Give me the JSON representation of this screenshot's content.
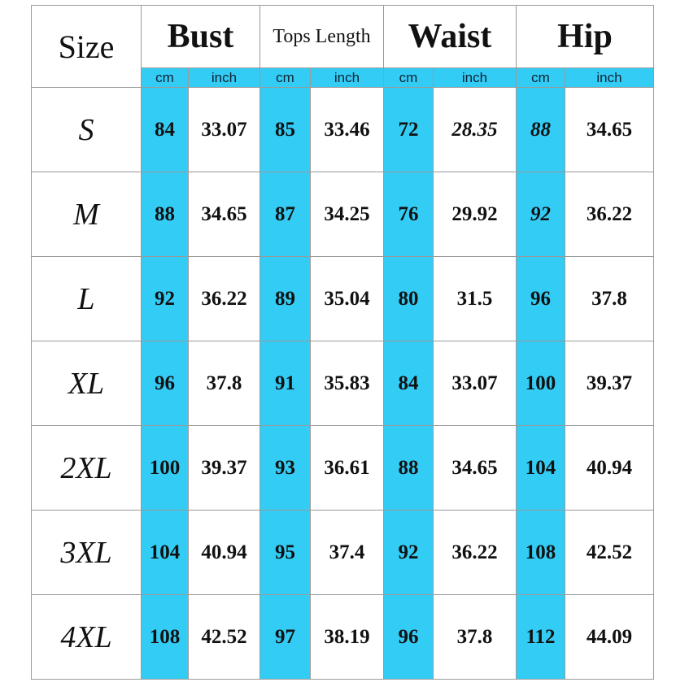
{
  "header": {
    "size": "Size",
    "groups": [
      "Bust",
      "Tops Length",
      "Waist",
      "Hip"
    ],
    "units": [
      "cm",
      "inch",
      "cm",
      "inch",
      "cm",
      "inch",
      "cm",
      "inch"
    ]
  },
  "rows": [
    {
      "size": "S",
      "cells": [
        "84",
        "33.07",
        "85",
        "33.46",
        "72",
        "28.35",
        "88",
        "34.65"
      ]
    },
    {
      "size": "M",
      "cells": [
        "88",
        "34.65",
        "87",
        "34.25",
        "76",
        "29.92",
        "92",
        "36.22"
      ]
    },
    {
      "size": "L",
      "cells": [
        "92",
        "36.22",
        "89",
        "35.04",
        "80",
        "31.5",
        "96",
        "37.8"
      ]
    },
    {
      "size": "XL",
      "cells": [
        "96",
        "37.8",
        "91",
        "35.83",
        "84",
        "33.07",
        "100",
        "39.37"
      ]
    },
    {
      "size": "2XL",
      "cells": [
        "100",
        "39.37",
        "93",
        "36.61",
        "88",
        "34.65",
        "104",
        "40.94"
      ]
    },
    {
      "size": "3XL",
      "cells": [
        "104",
        "40.94",
        "95",
        "37.4",
        "92",
        "36.22",
        "108",
        "42.52"
      ]
    },
    {
      "size": "4XL",
      "cells": [
        "108",
        "42.52",
        "97",
        "38.19",
        "96",
        "37.8",
        "112",
        "44.09"
      ]
    }
  ]
}
